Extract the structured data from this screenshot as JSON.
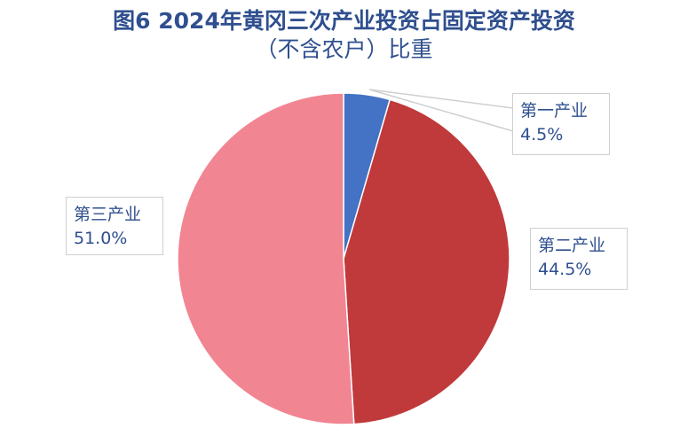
{
  "title_line1": "图6  2024年黄冈三次产业投资占固定资产投资",
  "title_line2": "（不含农户）比重",
  "chart_data": {
    "type": "pie",
    "title": "图6  2024年黄冈三次产业投资占固定资产投资（不含农户）比重",
    "slices": [
      {
        "name": "第一产业",
        "value": 4.5,
        "label": "4.5%",
        "color": "#4472c4"
      },
      {
        "name": "第二产业",
        "value": 44.5,
        "label": "44.5%",
        "color": "#c0393b"
      },
      {
        "name": "第三产业",
        "value": 51.0,
        "label": "51.0%",
        "color": "#f28592"
      }
    ],
    "start_angle": "12 o'clock, clockwise",
    "legend": "none"
  }
}
